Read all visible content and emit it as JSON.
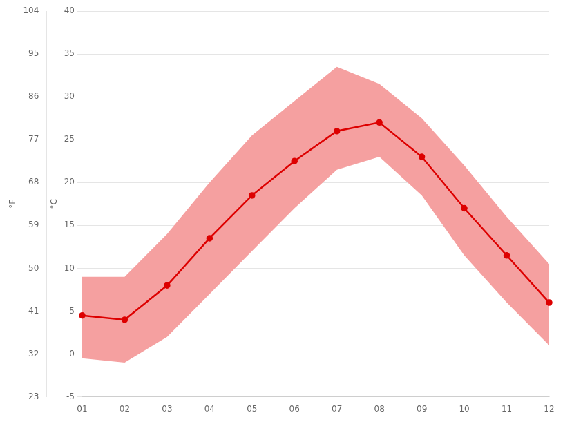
{
  "chart_data": {
    "type": "line",
    "categories": [
      "01",
      "02",
      "03",
      "04",
      "05",
      "06",
      "07",
      "08",
      "09",
      "10",
      "11",
      "12"
    ],
    "series": [
      {
        "type": "band",
        "color": "#f5a0a0",
        "low": [
          -0.5,
          -1.0,
          2.0,
          7.0,
          12.0,
          17.0,
          21.5,
          23.0,
          18.5,
          11.5,
          6.0,
          1.0
        ],
        "high": [
          9.0,
          9.0,
          14.0,
          20.0,
          25.5,
          29.5,
          33.5,
          31.5,
          27.5,
          22.0,
          16.0,
          10.5
        ]
      },
      {
        "type": "line",
        "color": "#dd0000",
        "marker": "circle",
        "values": [
          4.5,
          4.0,
          8.0,
          13.5,
          18.5,
          22.5,
          26.0,
          27.0,
          23.0,
          17.0,
          11.5,
          6.0
        ]
      }
    ],
    "ylabel": "°C",
    "ylim": [
      -5,
      40
    ],
    "yticks": [
      -5,
      0,
      5,
      10,
      15,
      20,
      25,
      30,
      35,
      40
    ],
    "y2label": "°F",
    "y2lim": [
      23,
      104
    ],
    "y2ticks": [
      23,
      32,
      41,
      50,
      59,
      68,
      77,
      86,
      95,
      104
    ],
    "grid": "y"
  }
}
